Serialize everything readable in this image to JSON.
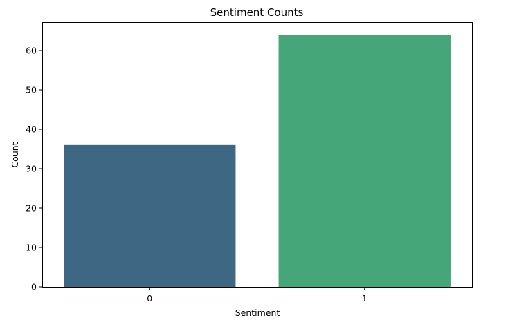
{
  "chart_data": {
    "type": "bar",
    "title": "Sentiment Counts",
    "xlabel": "Sentiment",
    "ylabel": "Count",
    "categories": [
      "0",
      "1"
    ],
    "values": [
      36,
      64
    ],
    "ylim": [
      0,
      67.2
    ],
    "yticks": [
      0,
      10,
      20,
      30,
      40,
      50,
      60
    ],
    "colors": [
      "#3e6783",
      "#45a779"
    ],
    "grid": false,
    "legend": "none"
  }
}
